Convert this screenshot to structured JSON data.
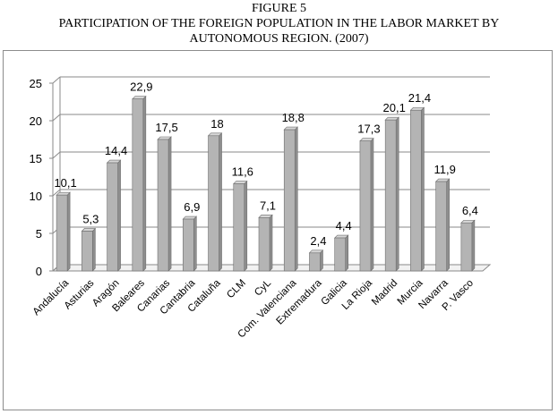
{
  "figure": {
    "label": "FIGURE 5",
    "title_line1": "PARTICIPATION OF THE FOREIGN POPULATION IN THE LABOR MARKET BY",
    "title_line2": "AUTONOMOUS REGION. (2007)"
  },
  "chart_data": {
    "type": "bar",
    "title": "",
    "xlabel": "",
    "ylabel": "",
    "ylim": [
      0,
      25
    ],
    "yticks": [
      0,
      5,
      10,
      15,
      20,
      25
    ],
    "grid": true,
    "legend": "none",
    "categories": [
      "Andalucía",
      "Asturias",
      "Aragón",
      "Baleares",
      "Canarias",
      "Cantabria",
      "Cataluña",
      "CLM",
      "CyL",
      "Com. Valenciana",
      "Extremadura",
      "Galicia",
      "La Rioja",
      "Madrid",
      "Murcia",
      "Navarra",
      "P. Vasco"
    ],
    "values": [
      10.1,
      5.3,
      14.4,
      22.9,
      17.5,
      6.9,
      18,
      11.6,
      7.1,
      18.8,
      2.4,
      4.4,
      17.3,
      20.1,
      21.4,
      11.9,
      6.4
    ],
    "data_labels": [
      "10,1",
      "5,3",
      "14,4",
      "22,9",
      "17,5",
      "6,9",
      "18",
      "11,6",
      "7,1",
      "18,8",
      "2,4",
      "4,4",
      "17,3",
      "20,1",
      "21,4",
      "11,9",
      "6,4"
    ],
    "colors": {
      "bar_front": "#b4b4b4",
      "bar_side": "#8e8e8e",
      "bar_top": "#d6d6d6",
      "grid": "#8a8a8a",
      "wall": "#ffffff"
    }
  }
}
